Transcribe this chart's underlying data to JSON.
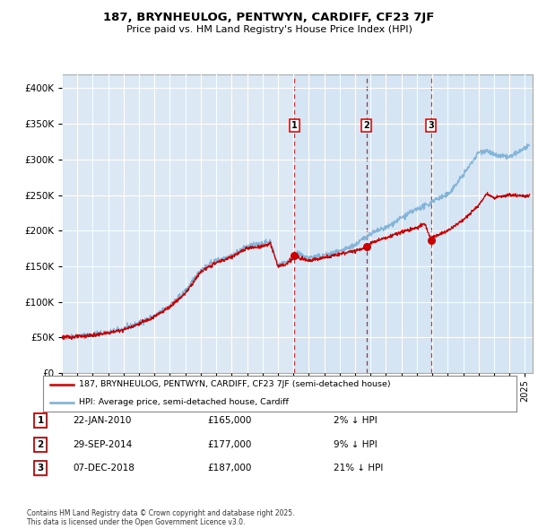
{
  "title_line1": "187, BRYNHEULOG, PENTWYN, CARDIFF, CF23 7JF",
  "title_line2": "Price paid vs. HM Land Registry's House Price Index (HPI)",
  "legend_red": "187, BRYNHEULOG, PENTWYN, CARDIFF, CF23 7JF (semi-detached house)",
  "legend_blue": "HPI: Average price, semi-detached house, Cardiff",
  "transactions": [
    {
      "num": 1,
      "date": "22-JAN-2010",
      "price": 165000,
      "hpi_rel": "2% ↓ HPI",
      "date_val": 2010.055
    },
    {
      "num": 2,
      "date": "29-SEP-2014",
      "price": 177000,
      "hpi_rel": "9% ↓ HPI",
      "date_val": 2014.747
    },
    {
      "num": 3,
      "date": "07-DEC-2018",
      "price": 187000,
      "hpi_rel": "21% ↓ HPI",
      "date_val": 2018.934
    }
  ],
  "footnote": "Contains HM Land Registry data © Crown copyright and database right 2025.\nThis data is licensed under the Open Government Licence v3.0.",
  "background_color": "#dce9f5",
  "fig_bg_color": "#ffffff",
  "ylim": [
    0,
    420000
  ],
  "yticks": [
    0,
    50000,
    100000,
    150000,
    200000,
    250000,
    300000,
    350000,
    400000
  ],
  "red_color": "#cc0000",
  "blue_color": "#7aafd4",
  "grid_color": "#ffffff",
  "xmin": 1995.0,
  "xmax": 2025.5
}
